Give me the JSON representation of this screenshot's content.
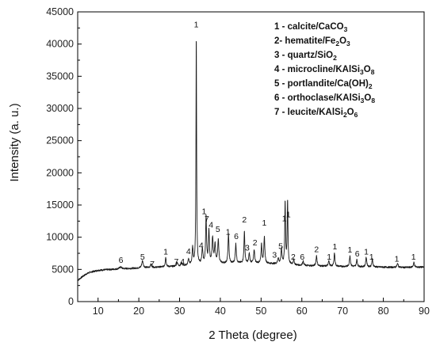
{
  "chart_data": {
    "type": "line",
    "xlabel": "2 Theta (degree)",
    "ylabel": "Intensity (a. u.)",
    "xlim": [
      5,
      90
    ],
    "ylim": [
      0,
      45000
    ],
    "x_ticks": [
      "10",
      "20",
      "30",
      "40",
      "50",
      "60",
      "70",
      "80",
      "90"
    ],
    "y_ticks": [
      "0",
      "5000",
      "10000",
      "15000",
      "20000",
      "25000",
      "30000",
      "35000",
      "40000",
      "45000"
    ],
    "grid": false,
    "legend_position": "top-right",
    "legend": [
      {
        "num": "1",
        "sep": " - ",
        "name": "calcite/CaCO",
        "formula": [
          [
            "3",
            "sub"
          ]
        ]
      },
      {
        "num": "2",
        "sep": "- ",
        "name": "hematite/Fe",
        "formula": [
          [
            "2",
            "sub"
          ],
          [
            "O",
            ""
          ],
          [
            "3",
            "sub"
          ]
        ]
      },
      {
        "num": "3",
        "sep": " - ",
        "name": "quartz/SiO",
        "formula": [
          [
            "2",
            "sub"
          ]
        ]
      },
      {
        "num": "4",
        "sep": " - ",
        "name": "microcline/KAlSi",
        "formula": [
          [
            "3",
            "sub"
          ],
          [
            "O",
            ""
          ],
          [
            "8",
            "sub"
          ]
        ]
      },
      {
        "num": "5",
        "sep": " - ",
        "name": "portlandite/Ca(OH)",
        "formula": [
          [
            "2",
            "sub"
          ]
        ]
      },
      {
        "num": "6",
        "sep": " - ",
        "name": "orthoclase/KAlSi",
        "formula": [
          [
            "3",
            "sub"
          ],
          [
            "O",
            ""
          ],
          [
            "8",
            "sub"
          ]
        ]
      },
      {
        "num": "7",
        "sep": " - ",
        "name": "leucite/KAlSi",
        "formula": [
          [
            "2",
            "sub"
          ],
          [
            "O",
            ""
          ],
          [
            "6",
            "sub"
          ]
        ]
      }
    ],
    "baseline": [
      [
        5,
        3300
      ],
      [
        6,
        3800
      ],
      [
        7,
        4250
      ],
      [
        8,
        4550
      ],
      [
        10,
        4850
      ],
      [
        12,
        4950
      ],
      [
        15,
        5050
      ],
      [
        18,
        5150
      ],
      [
        20,
        5200
      ],
      [
        25,
        5350
      ],
      [
        30,
        5500
      ],
      [
        35,
        5700
      ],
      [
        40,
        5900
      ],
      [
        45,
        5950
      ],
      [
        50,
        5950
      ],
      [
        55,
        5800
      ],
      [
        60,
        5600
      ],
      [
        65,
        5500
      ],
      [
        70,
        5450
      ],
      [
        75,
        5400
      ],
      [
        80,
        5350
      ],
      [
        85,
        5300
      ],
      [
        90,
        5350
      ]
    ],
    "peaks": [
      {
        "x": 15.5,
        "h": 300,
        "w": 0.35
      },
      {
        "x": 20.9,
        "h": 1100,
        "w": 0.22
      },
      {
        "x": 23.0,
        "h": 500,
        "w": 0.2
      },
      {
        "x": 26.6,
        "h": 1500,
        "w": 0.14
      },
      {
        "x": 29.4,
        "h": 600,
        "w": 0.18
      },
      {
        "x": 30.5,
        "h": 450,
        "w": 0.18
      },
      {
        "x": 32.2,
        "h": 900,
        "w": 0.18
      },
      {
        "x": 33.2,
        "h": 2600,
        "w": 0.15
      },
      {
        "x": 34.1,
        "h": 36300,
        "w": 0.09
      },
      {
        "x": 35.6,
        "h": 2400,
        "w": 0.16
      },
      {
        "x": 36.5,
        "h": 7500,
        "w": 0.13
      },
      {
        "x": 37.2,
        "h": 5200,
        "w": 0.14
      },
      {
        "x": 38.1,
        "h": 4000,
        "w": 0.16
      },
      {
        "x": 38.7,
        "h": 3000,
        "w": 0.16
      },
      {
        "x": 39.5,
        "h": 3600,
        "w": 0.16
      },
      {
        "x": 42.0,
        "h": 4600,
        "w": 0.14
      },
      {
        "x": 43.8,
        "h": 3000,
        "w": 0.15
      },
      {
        "x": 45.9,
        "h": 4900,
        "w": 0.13
      },
      {
        "x": 47.1,
        "h": 1500,
        "w": 0.15
      },
      {
        "x": 48.3,
        "h": 2100,
        "w": 0.15
      },
      {
        "x": 50.1,
        "h": 2900,
        "w": 0.14
      },
      {
        "x": 50.8,
        "h": 4100,
        "w": 0.14
      },
      {
        "x": 54.2,
        "h": 900,
        "w": 0.16
      },
      {
        "x": 55.0,
        "h": 2400,
        "w": 0.15
      },
      {
        "x": 55.9,
        "h": 9800,
        "w": 0.11
      },
      {
        "x": 56.5,
        "h": 9900,
        "w": 0.11
      },
      {
        "x": 58.0,
        "h": 800,
        "w": 0.16
      },
      {
        "x": 60.3,
        "h": 700,
        "w": 0.17
      },
      {
        "x": 63.6,
        "h": 1600,
        "w": 0.15
      },
      {
        "x": 66.6,
        "h": 900,
        "w": 0.15
      },
      {
        "x": 68.0,
        "h": 2100,
        "w": 0.14
      },
      {
        "x": 71.8,
        "h": 1700,
        "w": 0.15
      },
      {
        "x": 73.5,
        "h": 1100,
        "w": 0.15
      },
      {
        "x": 75.8,
        "h": 1500,
        "w": 0.15
      },
      {
        "x": 77.3,
        "h": 1200,
        "w": 0.15
      },
      {
        "x": 83.5,
        "h": 600,
        "w": 0.17
      },
      {
        "x": 87.5,
        "h": 750,
        "w": 0.17
      }
    ],
    "peak_labels": [
      {
        "text": "6",
        "x": 15.6,
        "y": 6000
      },
      {
        "text": "5",
        "x": 20.9,
        "y": 6500
      },
      {
        "text": "7",
        "x": 23.3,
        "y": 5400
      },
      {
        "text": "1",
        "x": 26.6,
        "y": 7300
      },
      {
        "text": "7",
        "x": 29.2,
        "y": 5800
      },
      {
        "text": "4",
        "x": 30.7,
        "y": 5800
      },
      {
        "text": "4",
        "x": 32.2,
        "y": 7400
      },
      {
        "text": "1",
        "x": 34.1,
        "y": 42600
      },
      {
        "text": "4",
        "x": 35.3,
        "y": 8300
      },
      {
        "text": "1",
        "x": 36.0,
        "y": 13600
      },
      {
        "text": "7",
        "x": 36.7,
        "y": 12400
      },
      {
        "text": "4",
        "x": 37.7,
        "y": 11500
      },
      {
        "text": "5",
        "x": 39.4,
        "y": 10800
      },
      {
        "text": "1",
        "x": 41.9,
        "y": 10400
      },
      {
        "text": "6",
        "x": 43.9,
        "y": 9700
      },
      {
        "text": "2",
        "x": 45.9,
        "y": 12300
      },
      {
        "text": "3",
        "x": 46.6,
        "y": 7900
      },
      {
        "text": "2",
        "x": 48.5,
        "y": 8700
      },
      {
        "text": "1",
        "x": 50.8,
        "y": 11800
      },
      {
        "text": "3",
        "x": 53.3,
        "y": 6800
      },
      {
        "text": "5",
        "x": 54.8,
        "y": 8200
      },
      {
        "text": "1",
        "x": 55.7,
        "y": 12500
      },
      {
        "text": "1",
        "x": 56.7,
        "y": 13100
      },
      {
        "text": "2",
        "x": 57.9,
        "y": 6500
      },
      {
        "text": "6",
        "x": 60.1,
        "y": 6500
      },
      {
        "text": "2",
        "x": 63.6,
        "y": 7700
      },
      {
        "text": "1",
        "x": 66.7,
        "y": 6500
      },
      {
        "text": "1",
        "x": 68.1,
        "y": 8100
      },
      {
        "text": "1",
        "x": 71.8,
        "y": 7600
      },
      {
        "text": "6",
        "x": 73.6,
        "y": 7000
      },
      {
        "text": "1",
        "x": 75.8,
        "y": 7300
      },
      {
        "text": "1",
        "x": 77.1,
        "y": 6500
      },
      {
        "text": "1",
        "x": 83.3,
        "y": 6200
      },
      {
        "text": "1",
        "x": 87.4,
        "y": 6500
      }
    ]
  }
}
